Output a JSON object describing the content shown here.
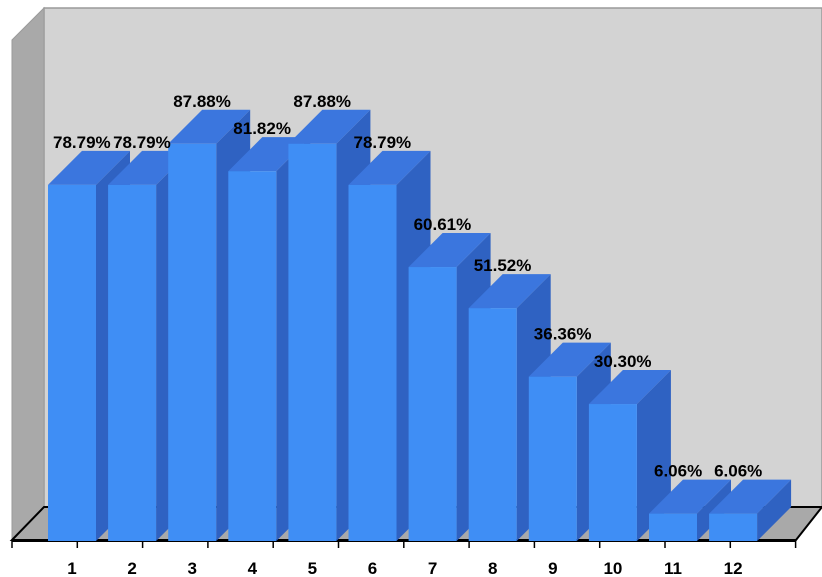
{
  "chart_data": {
    "type": "bar",
    "categories": [
      "1",
      "2",
      "3",
      "4",
      "5",
      "6",
      "7",
      "8",
      "9",
      "10",
      "11",
      "12"
    ],
    "values": [
      78.79,
      78.79,
      87.88,
      81.82,
      87.88,
      78.79,
      60.61,
      51.52,
      36.36,
      30.3,
      6.06,
      6.06
    ],
    "data_labels": [
      "78.79%",
      "78.79%",
      "87.88%",
      "81.82%",
      "87.88%",
      "78.79%",
      "60.61%",
      "51.52%",
      "36.36%",
      "30.30%",
      "6.06%",
      "6.06%"
    ],
    "ylim": [
      0,
      100
    ],
    "grid": false,
    "legend": "none",
    "colors": {
      "bar_front": "#3f8ef5",
      "bar_side": "#2f62c2",
      "bar_top": "#3b76de",
      "back_wall": "#d3d3d3",
      "side_wall": "#a9a9a9",
      "floor": "#a9a9a9"
    }
  }
}
